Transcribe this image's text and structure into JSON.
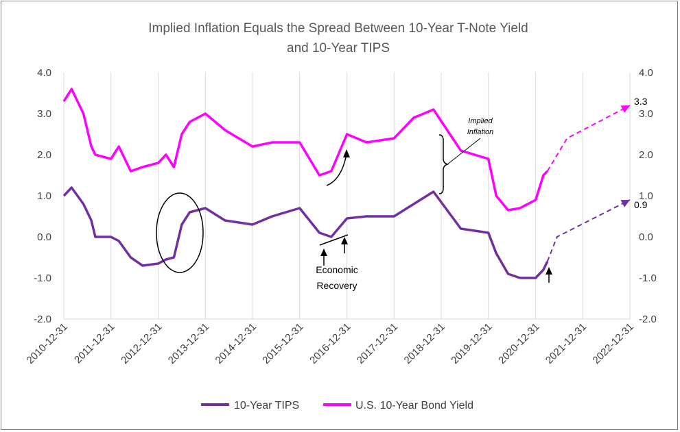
{
  "chart_data": {
    "type": "line",
    "title_line1": "Implied Inflation Equals the Spread Between 10-Year T-Note Yield",
    "title_line2": "and 10-Year TIPS",
    "x_tick_labels": [
      "2010-12-31",
      "2011-12-31",
      "2012-12-31",
      "2013-12-31",
      "2014-12-31",
      "2015-12-31",
      "2016-12-31",
      "2017-12-31",
      "2018-12-31",
      "2019-12-31",
      "2020-12-31",
      "2021-12-31",
      "2022-12-31"
    ],
    "y_tick_labels": [
      "4.0",
      "3.0",
      "2.0",
      "1.0",
      "0.0",
      "-1.0",
      "-2.0"
    ],
    "ylim": [
      -2.0,
      4.0
    ],
    "xlim": [
      "2010-12-31",
      "2022-12-31"
    ],
    "grid": "vertical",
    "legend_position": "bottom",
    "series": [
      {
        "name": "10-Year TIPS",
        "color": "#7030a0",
        "x": [
          "2010-12-31",
          "2011-03-01",
          "2011-06-01",
          "2011-08-01",
          "2011-09-01",
          "2011-12-31",
          "2012-03-01",
          "2012-06-01",
          "2012-09-01",
          "2012-12-31",
          "2013-03-01",
          "2013-05-01",
          "2013-07-01",
          "2013-09-01",
          "2013-12-31",
          "2014-06-01",
          "2014-12-31",
          "2015-06-01",
          "2015-12-31",
          "2016-06-01",
          "2016-09-01",
          "2016-12-31",
          "2017-06-01",
          "2017-12-31",
          "2018-06-01",
          "2018-11-01",
          "2019-06-01",
          "2019-12-31",
          "2020-03-01",
          "2020-06-01",
          "2020-09-01",
          "2020-12-31",
          "2021-03-01",
          "2021-04-01"
        ],
        "values": [
          1.0,
          1.2,
          0.8,
          0.4,
          0.0,
          0.0,
          -0.1,
          -0.5,
          -0.7,
          -0.65,
          -0.55,
          -0.5,
          0.3,
          0.6,
          0.7,
          0.4,
          0.3,
          0.5,
          0.7,
          0.1,
          0.0,
          0.45,
          0.5,
          0.5,
          0.8,
          1.1,
          0.2,
          0.1,
          -0.4,
          -0.9,
          -1.0,
          -1.0,
          -0.8,
          -0.6
        ],
        "projection": {
          "x": [
            "2021-04-01",
            "2021-06-15",
            "2022-12-31"
          ],
          "values": [
            -0.6,
            0.0,
            0.9
          ]
        }
      },
      {
        "name": "U.S. 10-Year Bond Yield",
        "color": "#ff00ff",
        "x": [
          "2010-12-31",
          "2011-03-01",
          "2011-06-01",
          "2011-08-01",
          "2011-09-01",
          "2011-12-31",
          "2012-03-01",
          "2012-06-01",
          "2012-09-01",
          "2012-12-31",
          "2013-03-01",
          "2013-05-01",
          "2013-07-01",
          "2013-09-01",
          "2013-12-31",
          "2014-06-01",
          "2014-12-31",
          "2015-06-01",
          "2015-12-31",
          "2016-06-01",
          "2016-09-01",
          "2016-12-31",
          "2017-06-01",
          "2017-12-31",
          "2018-06-01",
          "2018-11-01",
          "2019-06-01",
          "2019-12-31",
          "2020-03-01",
          "2020-06-01",
          "2020-09-01",
          "2020-12-31",
          "2021-03-01",
          "2021-04-01"
        ],
        "values": [
          3.3,
          3.6,
          3.0,
          2.2,
          2.0,
          1.9,
          2.2,
          1.6,
          1.7,
          1.8,
          2.0,
          1.7,
          2.5,
          2.8,
          3.0,
          2.6,
          2.2,
          2.3,
          2.3,
          1.5,
          1.6,
          2.5,
          2.3,
          2.4,
          2.9,
          3.1,
          2.1,
          1.9,
          1.0,
          0.65,
          0.7,
          0.9,
          1.5,
          1.6
        ],
        "projection": {
          "x": [
            "2021-04-01",
            "2021-09-01",
            "2022-12-31"
          ],
          "values": [
            1.6,
            2.4,
            3.2
          ]
        }
      }
    ],
    "annotations": {
      "label_3_3": "3.3",
      "label_0_9": "0.9",
      "economic_recovery_line1": "Economic",
      "economic_recovery_line2": "Recovery",
      "implied_line1": "Implied",
      "implied_line2": "Inflation"
    }
  }
}
